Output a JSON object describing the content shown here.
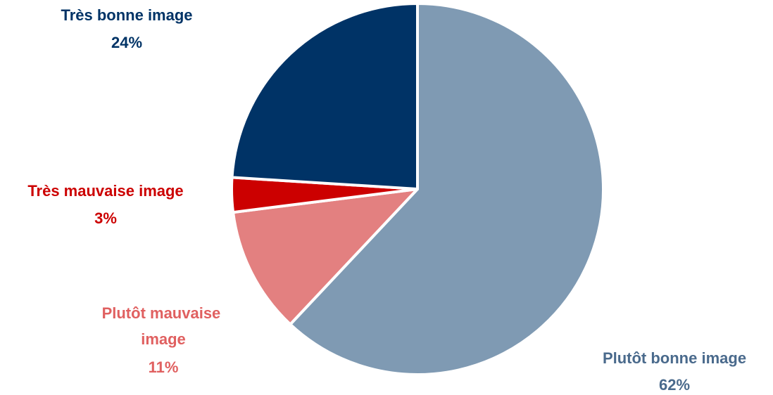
{
  "chart_data": {
    "type": "pie",
    "title": "",
    "slices": [
      {
        "label": "Plutôt bonne image",
        "value": 62,
        "value_label": "62%",
        "color": "#7f9ab3",
        "label_color": "#4a6a8c"
      },
      {
        "label": "Plutôt mauvaise image",
        "value": 11,
        "value_label": "11%",
        "color": "#e38080",
        "label_color": "#e06060"
      },
      {
        "label": "Très mauvaise image",
        "value": 3,
        "value_label": "3%",
        "color": "#cc0000",
        "label_color": "#cc0000"
      },
      {
        "label": "Très bonne image",
        "value": 24,
        "value_label": "24%",
        "color": "#003366",
        "label_color": "#003366"
      }
    ],
    "start_angle_deg": 0,
    "direction": "clockwise"
  }
}
